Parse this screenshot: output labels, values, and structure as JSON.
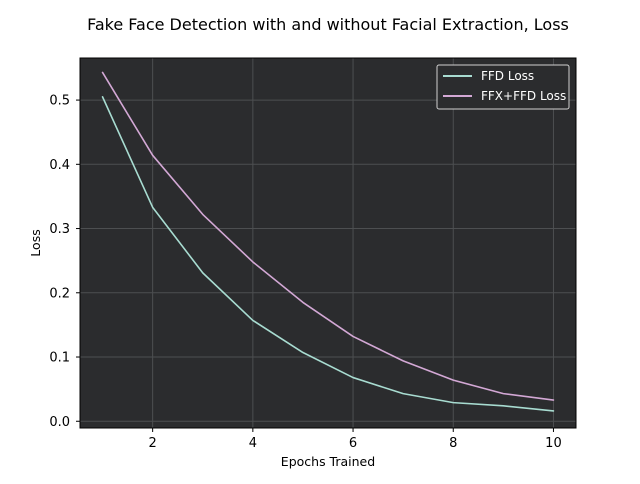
{
  "chart_data": {
    "type": "line",
    "title": "Fake Face Detection with and without Facial Extraction, Loss",
    "xlabel": "Epochs Trained",
    "ylabel": "Loss",
    "xlim": [
      0.55,
      10.45
    ],
    "ylim": [
      -0.0105,
      0.5655
    ],
    "xticks": [
      2,
      4,
      6,
      8,
      10
    ],
    "xtick_labels": [
      "2",
      "4",
      "6",
      "8",
      "10"
    ],
    "yticks": [
      0.0,
      0.1,
      0.2,
      0.3,
      0.4,
      0.5
    ],
    "ytick_labels": [
      "0.0",
      "0.1",
      "0.2",
      "0.3",
      "0.4",
      "0.5"
    ],
    "grid": true,
    "legend_position": "top-right",
    "x": [
      1,
      2,
      3,
      4,
      5,
      6,
      7,
      8,
      9,
      10
    ],
    "series": [
      {
        "name": "FFD Loss",
        "color": "#a8dcd1",
        "values": [
          0.505,
          0.333,
          0.231,
          0.157,
          0.107,
          0.068,
          0.043,
          0.029,
          0.024,
          0.016
        ]
      },
      {
        "name": "FFX+FFD Loss",
        "color": "#d3a8d5",
        "values": [
          0.543,
          0.414,
          0.322,
          0.248,
          0.185,
          0.132,
          0.094,
          0.064,
          0.043,
          0.033
        ]
      }
    ],
    "colors": {
      "plot_background": "#2b2c2e",
      "grid": "#4d4f51",
      "axes_edge": "#000000"
    }
  }
}
